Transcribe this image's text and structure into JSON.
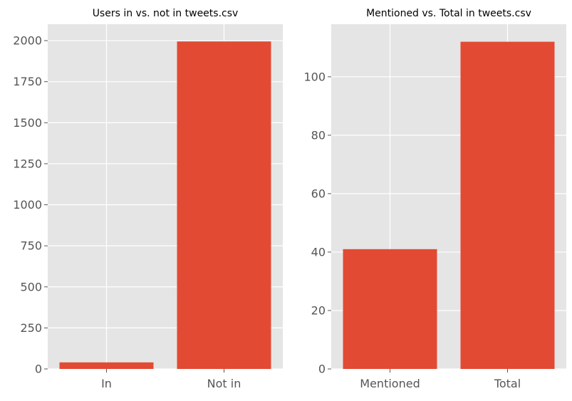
{
  "chart_data": [
    {
      "type": "bar",
      "title": "Users in vs. not in tweets.csv",
      "categories": [
        "In",
        "Not in"
      ],
      "values": [
        40,
        1995
      ],
      "xlabel": "",
      "ylabel": "",
      "ylim": [
        0,
        2100
      ],
      "yticks": [
        0,
        250,
        500,
        750,
        1000,
        1250,
        1500,
        1750,
        2000
      ],
      "grid": true,
      "bar_color": "#e24a33",
      "background_color": "#e5e5e5"
    },
    {
      "type": "bar",
      "title": "Mentioned vs. Total in tweets.csv",
      "categories": [
        "Mentioned",
        "Total"
      ],
      "values": [
        41,
        112
      ],
      "xlabel": "",
      "ylabel": "",
      "ylim": [
        0,
        118
      ],
      "yticks": [
        0,
        20,
        40,
        60,
        80,
        100
      ],
      "grid": true,
      "bar_color": "#e24a33",
      "background_color": "#e5e5e5"
    }
  ]
}
